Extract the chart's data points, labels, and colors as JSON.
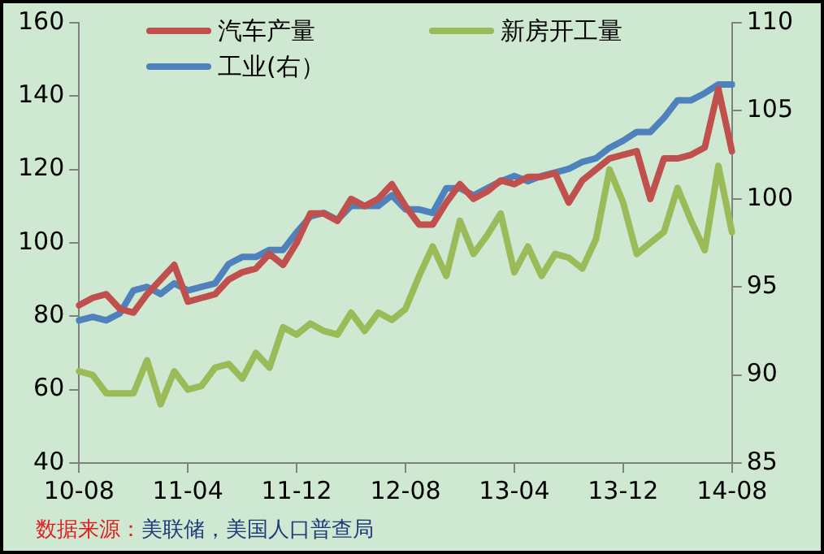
{
  "chart_data": {
    "type": "line",
    "categories": [
      "10-08",
      null,
      null,
      null,
      null,
      null,
      null,
      null,
      "11-04",
      null,
      null,
      null,
      null,
      null,
      null,
      null,
      "11-12",
      null,
      null,
      null,
      null,
      null,
      null,
      null,
      "12-08",
      null,
      null,
      null,
      null,
      null,
      null,
      null,
      "13-04",
      null,
      null,
      null,
      null,
      null,
      null,
      null,
      "13-12",
      null,
      null,
      null,
      null,
      null,
      null,
      null,
      "14-08"
    ],
    "series": [
      {
        "name": "汽车产量",
        "color": "#c0504d",
        "values": [
          83,
          85,
          86,
          82,
          81,
          86,
          90,
          94,
          84,
          85,
          86,
          90,
          92,
          93,
          97,
          94,
          100,
          108,
          108,
          106,
          112,
          110,
          112,
          116,
          110,
          105,
          105,
          111,
          116,
          112,
          114,
          117,
          116,
          118,
          118,
          119,
          111,
          117,
          120,
          123,
          124,
          125,
          112,
          123,
          123,
          124,
          126,
          142,
          125
        ]
      },
      {
        "name": "新房开工量",
        "color": "#9bbb59",
        "values": [
          65,
          64,
          59,
          59,
          59,
          68,
          56,
          65,
          60,
          61,
          66,
          67,
          63,
          70,
          66,
          77,
          75,
          78,
          76,
          75,
          81,
          76,
          81,
          79,
          82,
          91,
          99,
          91,
          106,
          97,
          102,
          108,
          92,
          99,
          91,
          97,
          96,
          93,
          101,
          120,
          111,
          97,
          100,
          103,
          115,
          106,
          98,
          121,
          103
        ]
      },
      {
        "name": "工业(右）",
        "color": "#4f81bd",
        "axis": "y2",
        "values": [
          93.1,
          93.3,
          93.1,
          93.5,
          94.8,
          95.0,
          94.6,
          95.2,
          94.8,
          95.0,
          95.2,
          96.3,
          96.7,
          96.7,
          97.1,
          97.1,
          98.1,
          99.0,
          99.2,
          98.8,
          99.6,
          99.6,
          99.6,
          100.2,
          99.4,
          99.4,
          99.2,
          100.6,
          100.6,
          100.2,
          100.6,
          101.0,
          101.3,
          101.0,
          101.3,
          101.5,
          101.7,
          102.1,
          102.3,
          102.9,
          103.3,
          103.8,
          103.8,
          104.6,
          105.6,
          105.6,
          106.0,
          106.5,
          106.5
        ]
      }
    ],
    "ylim": [
      40,
      160
    ],
    "yticks": [
      40,
      60,
      80,
      100,
      120,
      140,
      160
    ],
    "y2lim": [
      85,
      110
    ],
    "y2ticks": [
      85,
      90,
      95,
      100,
      105,
      110
    ],
    "grid": false,
    "legend": "top",
    "marker": "none",
    "line_style": "solid",
    "annotations": [
      "数据来源：美联储，美国人口普查局"
    ]
  }
}
